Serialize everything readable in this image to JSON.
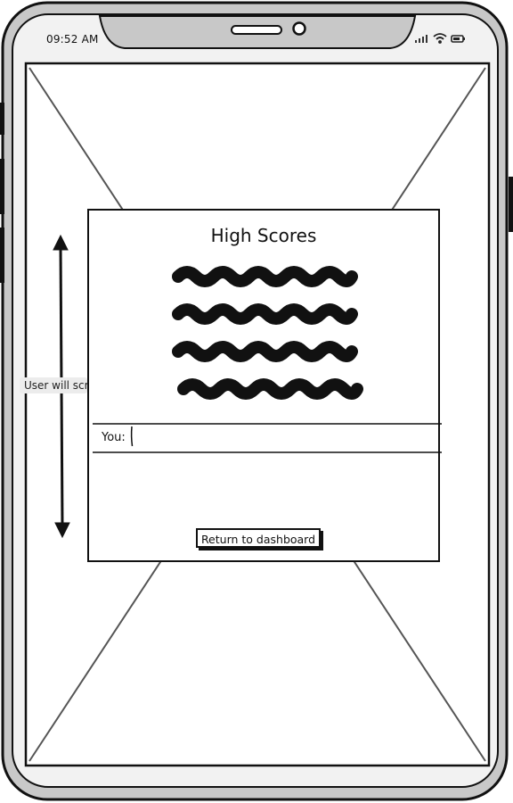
{
  "status_bar": {
    "time": "09:52 AM",
    "icons": [
      "signal-icon",
      "wifi-icon",
      "battery-icon"
    ]
  },
  "annotation": {
    "scroll_note": "User will scroll"
  },
  "high_scores": {
    "title": "High Scores",
    "score_rows": 4,
    "you_label": "You:",
    "return_button": "Return to dashboard"
  }
}
